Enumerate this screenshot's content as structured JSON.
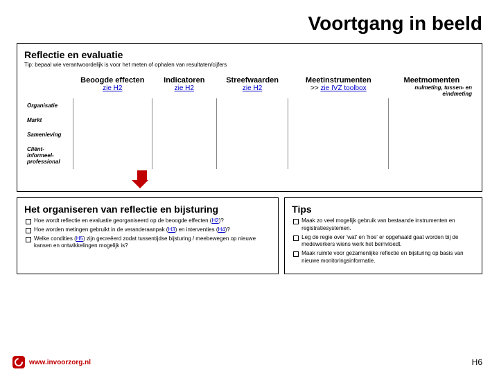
{
  "title": "Voortgang in beeld",
  "panel1": {
    "heading": "Reflectie en evaluatie",
    "tip": "Tip: bepaal wie verantwoordelijk is voor het meten of ophalen van resultaten/cijfers",
    "columns": [
      {
        "label": "Beoogde effecten",
        "sub_prefix": "",
        "sub_link": "zie H2",
        "sub_suffix": ""
      },
      {
        "label": "Indicatoren",
        "sub_prefix": "",
        "sub_link": "zie H2",
        "sub_suffix": ""
      },
      {
        "label": "Streefwaarden",
        "sub_prefix": "",
        "sub_link": "zie H2",
        "sub_suffix": ""
      },
      {
        "label": "Meetinstrumenten",
        "sub_prefix": ">> ",
        "sub_link": "zie IVZ toolbox",
        "sub_suffix": ""
      },
      {
        "label": "Meetmomenten",
        "sub_prefix": "",
        "sub_link": "",
        "sub_note": "nulmeting, tussen- en eindmeting"
      }
    ],
    "rows": [
      "Organisatie",
      "Markt",
      "Samenleving",
      "Cliënt-informeel-professional"
    ]
  },
  "panel2": {
    "heading": "Het organiseren van reflectie en bijsturing",
    "items": [
      {
        "pre": "Hoe wordt reflectie en evaluatie georganiseerd op de beoogde effecten (",
        "link": "H2",
        "post": ")?"
      },
      {
        "pre": "Hoe worden metingen gebruikt in de veranderaanpak (",
        "link": "H3",
        "mid": ") en interventies (",
        "link2": "H4",
        "post": ")?"
      },
      {
        "pre": "Welke condities (",
        "link": "H5",
        "post": ") zijn gecreëerd zodat tussentijdse bijsturing / meebewegen op nieuwe kansen en ontwikkelingen mogelijk is?"
      }
    ]
  },
  "panel3": {
    "heading": "Tips",
    "items": [
      "Maak zo veel mogelijk gebruik van bestaande instrumenten en registratiesystemen.",
      "Leg de regie over 'wat' en 'hoe' er opgehaald gaat worden bij de medewerkers wiens werk het beïnvloedt.",
      "Maak ruimte voor gezamenlijke reflectie en bijsturing op basis van nieuwe monitoringsinformatie."
    ]
  },
  "footer": {
    "url": "www.invoorzorg.nl",
    "page": "H6"
  },
  "colors": {
    "accent": "#c00000",
    "link": "#0000cc"
  }
}
